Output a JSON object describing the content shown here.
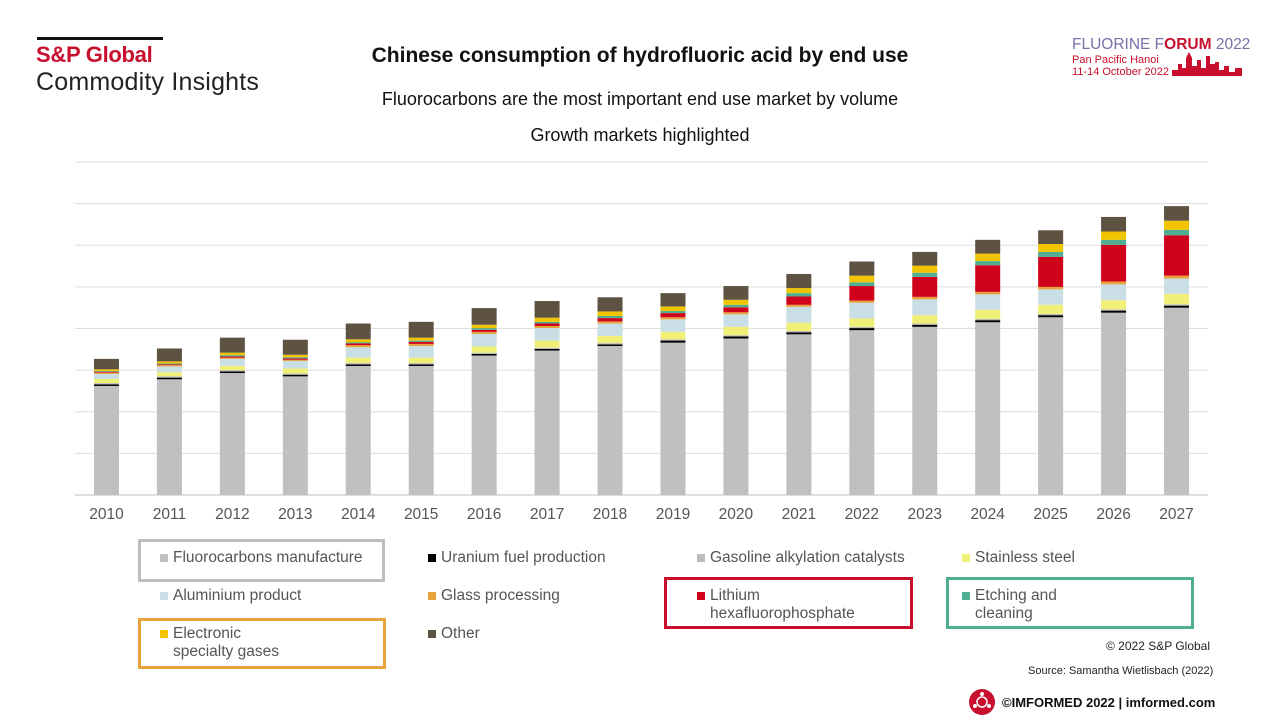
{
  "branding": {
    "logo_line1": "S&P Global",
    "logo_line2": "Commodity Insights",
    "forum_title_a": "FLUORINE F",
    "forum_title_b": "ORUM",
    "forum_title_c": " 2022",
    "forum_location": "Pan Pacific Hanoi",
    "forum_dates": "11-14 October 2022",
    "footer_copyright": "© 2022 S&P Global",
    "footer_source": "Source: Samantha Wietlisbach (2022)",
    "footer_imformed": "©IMFORMED 2022  | imformed.com"
  },
  "chart_data": {
    "type": "bar",
    "stacked": true,
    "title": "Chinese consumption of hydrofluoric acid by end use",
    "subtitle": "Fluorocarbons are the most important end use market by volume",
    "subtitle2": "Growth markets highlighted",
    "grid": true,
    "ylim": [
      0,
      8
    ],
    "categories": [
      "2010",
      "2011",
      "2012",
      "2013",
      "2014",
      "2015",
      "2016",
      "2017",
      "2018",
      "2019",
      "2020",
      "2021",
      "2022",
      "2023",
      "2024",
      "2025",
      "2026",
      "2027"
    ],
    "series": [
      {
        "name": "Fluorocarbons manufacture",
        "color": "#c0c0c0",
        "values": [
          2.62,
          2.78,
          2.93,
          2.85,
          3.1,
          3.1,
          3.35,
          3.47,
          3.58,
          3.66,
          3.76,
          3.86,
          3.96,
          4.04,
          4.15,
          4.27,
          4.38,
          4.5
        ]
      },
      {
        "name": "Uranium fuel production",
        "color": "#000000",
        "values": [
          0.04,
          0.04,
          0.04,
          0.04,
          0.04,
          0.04,
          0.04,
          0.04,
          0.04,
          0.05,
          0.05,
          0.05,
          0.05,
          0.05,
          0.05,
          0.05,
          0.05,
          0.05
        ]
      },
      {
        "name": "Gasoline alkylation catalysts",
        "color": "#bdbdbd",
        "values": [
          0.03,
          0.03,
          0.03,
          0.03,
          0.03,
          0.03,
          0.03,
          0.03,
          0.03,
          0.03,
          0.03,
          0.03,
          0.03,
          0.03,
          0.03,
          0.03,
          0.03,
          0.03
        ]
      },
      {
        "name": "Stainless steel",
        "color": "#f0f078",
        "values": [
          0.1,
          0.1,
          0.1,
          0.12,
          0.13,
          0.13,
          0.15,
          0.17,
          0.17,
          0.18,
          0.2,
          0.2,
          0.2,
          0.2,
          0.22,
          0.22,
          0.22,
          0.25
        ]
      },
      {
        "name": "Aluminium product",
        "color": "#c9dfe5",
        "values": [
          0.12,
          0.14,
          0.17,
          0.18,
          0.25,
          0.28,
          0.3,
          0.3,
          0.3,
          0.3,
          0.3,
          0.38,
          0.38,
          0.38,
          0.37,
          0.37,
          0.38,
          0.37
        ]
      },
      {
        "name": "Glass processing",
        "color": "#e8a33d",
        "values": [
          0.03,
          0.03,
          0.03,
          0.03,
          0.05,
          0.05,
          0.05,
          0.05,
          0.05,
          0.05,
          0.05,
          0.05,
          0.05,
          0.06,
          0.06,
          0.06,
          0.07,
          0.07
        ]
      },
      {
        "name": "Lithium hexafluorophosphate",
        "color": "#d0021b",
        "values": [
          0.02,
          0.02,
          0.03,
          0.03,
          0.04,
          0.05,
          0.05,
          0.06,
          0.08,
          0.1,
          0.12,
          0.2,
          0.35,
          0.48,
          0.64,
          0.72,
          0.88,
          0.97
        ]
      },
      {
        "name": "Etching and cleaning",
        "color": "#4fae91",
        "values": [
          0.02,
          0.02,
          0.03,
          0.03,
          0.03,
          0.03,
          0.04,
          0.04,
          0.05,
          0.05,
          0.06,
          0.08,
          0.09,
          0.1,
          0.1,
          0.12,
          0.12,
          0.13
        ]
      },
      {
        "name": "Electronic specialty gases",
        "color": "#f2c400",
        "values": [
          0.04,
          0.05,
          0.06,
          0.06,
          0.07,
          0.07,
          0.08,
          0.1,
          0.11,
          0.11,
          0.12,
          0.12,
          0.16,
          0.17,
          0.18,
          0.19,
          0.2,
          0.22
        ]
      },
      {
        "name": "Other",
        "color": "#5e5343",
        "values": [
          0.25,
          0.31,
          0.36,
          0.36,
          0.38,
          0.38,
          0.4,
          0.4,
          0.34,
          0.32,
          0.33,
          0.34,
          0.34,
          0.33,
          0.33,
          0.33,
          0.35,
          0.35
        ]
      }
    ],
    "legend_rows": [
      [
        "Fluorocarbons manufacture",
        "Uranium fuel production",
        "Gasoline alkylation catalysts",
        "Stainless steel"
      ],
      [
        "Aluminium product",
        "Glass processing",
        "Lithium\nhexafluorophosphate",
        "Etching and\ncleaning"
      ],
      [
        "Electronic\nspecialty gases",
        "Other"
      ]
    ],
    "highlights": [
      {
        "series": "Fluorocarbons manufacture",
        "color": "#bdbdbd"
      },
      {
        "series": "Lithium hexafluorophosphate",
        "color": "#c8102e"
      },
      {
        "series": "Etching and cleaning",
        "color": "#4fae91"
      },
      {
        "series": "Electronic specialty gases",
        "color": "#e8a33d"
      }
    ]
  }
}
